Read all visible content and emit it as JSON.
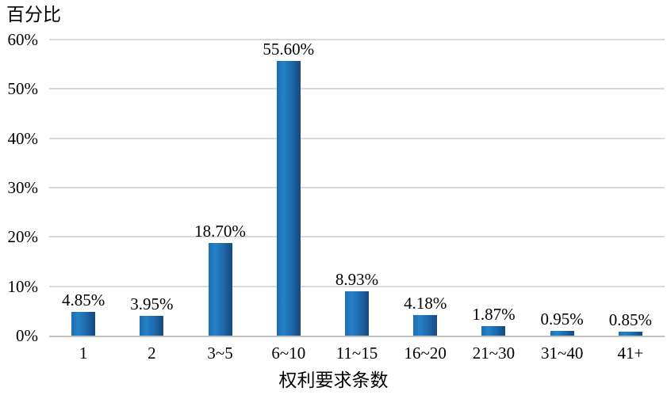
{
  "chart_data": {
    "type": "bar",
    "title": "",
    "y_axis_title": "百分比",
    "xlabel": "权利要求条数",
    "categories": [
      "1",
      "2",
      "3~5",
      "6~10",
      "11~15",
      "16~20",
      "21~30",
      "31~40",
      "41+"
    ],
    "values": [
      4.85,
      3.95,
      18.7,
      55.6,
      8.93,
      4.18,
      1.87,
      0.95,
      0.85
    ],
    "value_labels": [
      "4.85%",
      "3.95%",
      "18.70%",
      "55.60%",
      "8.93%",
      "4.18%",
      "1.87%",
      "0.95%",
      "0.85%"
    ],
    "ylim": [
      0,
      60
    ],
    "yticks": [
      0,
      10,
      20,
      30,
      40,
      50,
      60
    ],
    "ytick_labels": [
      "0%",
      "10%",
      "20%",
      "30%",
      "40%",
      "50%",
      "60%"
    ],
    "grid": true,
    "legend": "none",
    "colors": {
      "bar_left": "#1e6db4",
      "bar_light": "#2581c7",
      "bar_mid": "#1f6cb0",
      "bar_dark": "#16497e",
      "gridline": "#d9d9d9",
      "axis_line": "#c2c2c2",
      "text": "#000000",
      "background": "#ffffff"
    }
  }
}
